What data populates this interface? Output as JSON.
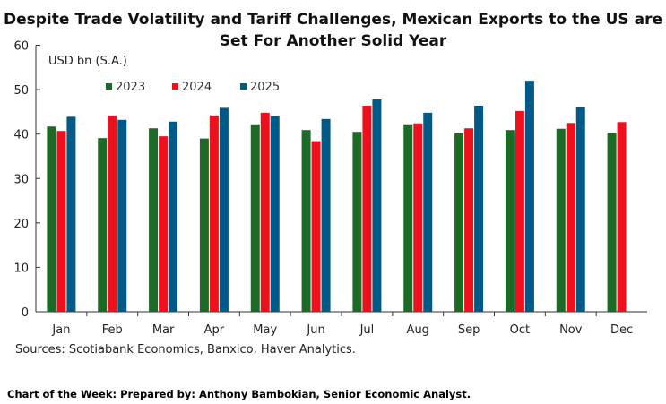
{
  "title_line1": "Despite Trade Volatility and Tariff Challenges, Mexican Exports to the US are",
  "title_line2": "Set For Another Solid Year",
  "source": "Sources: Scotiabank Economics, Banxico, Haver Analytics.",
  "footer": "Chart of the Week:  Prepared by: Anthony Bambokian, Senior Economic Analyst.",
  "chart_data": {
    "type": "bar",
    "ylabel": "USD bn (S.A.)",
    "ylim": [
      0,
      60
    ],
    "yticks": [
      0,
      10,
      20,
      30,
      40,
      50,
      60
    ],
    "grid": false,
    "legend": "top-left",
    "categories": [
      "Jan",
      "Feb",
      "Mar",
      "Apr",
      "May",
      "Jun",
      "Jul",
      "Aug",
      "Sep",
      "Oct",
      "Nov",
      "Dec"
    ],
    "series": [
      {
        "name": "2023",
        "color": "#1b6b26",
        "values": [
          41.7,
          39.1,
          41.3,
          39.0,
          42.2,
          40.9,
          40.5,
          42.2,
          40.2,
          40.9,
          41.2,
          40.3
        ]
      },
      {
        "name": "2024",
        "color": "#ec111d",
        "values": [
          40.7,
          44.2,
          39.5,
          44.2,
          44.8,
          38.4,
          46.4,
          42.4,
          41.3,
          45.2,
          42.5,
          42.7
        ]
      },
      {
        "name": "2025",
        "color": "#005a87",
        "values": [
          43.9,
          43.2,
          42.8,
          45.9,
          44.1,
          43.4,
          47.8,
          44.8,
          46.4,
          52.0,
          46.0,
          null
        ]
      }
    ]
  }
}
